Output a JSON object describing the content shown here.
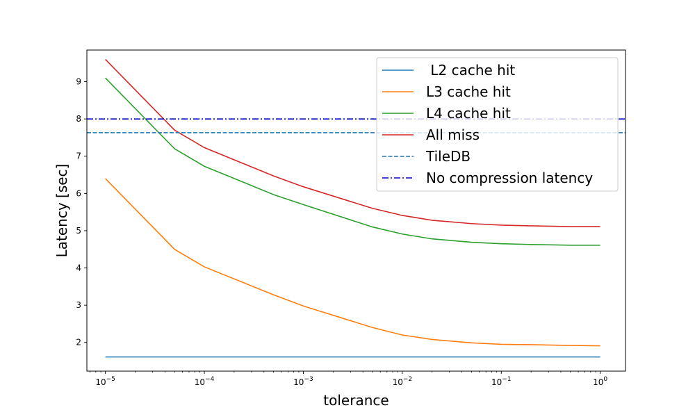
{
  "chart_data": {
    "type": "line",
    "title": "",
    "xlabel": "tolerance",
    "ylabel": "Latency [sec]",
    "xscale": "log",
    "xlim": [
      6.5e-06,
      1.8
    ],
    "ylim": [
      1.23,
      9.85
    ],
    "grid": false,
    "legend_position": "upper right",
    "x_ticks": [
      {
        "value": 1e-05,
        "base": "10",
        "exp": "−5"
      },
      {
        "value": 0.0001,
        "base": "10",
        "exp": "−4"
      },
      {
        "value": 0.001,
        "base": "10",
        "exp": "−3"
      },
      {
        "value": 0.01,
        "base": "10",
        "exp": "−2"
      },
      {
        "value": 0.1,
        "base": "10",
        "exp": "−1"
      },
      {
        "value": 1,
        "base": "10",
        "exp": "0"
      }
    ],
    "y_ticks": [
      2,
      3,
      4,
      5,
      6,
      7,
      8,
      9
    ],
    "series": [
      {
        "name": " L2 cache hit",
        "color": "#1f77b4",
        "style": "solid",
        "x": [
          1e-05,
          5e-05,
          0.0001,
          0.0005,
          0.001,
          0.005,
          0.01,
          0.02,
          0.05,
          0.1,
          0.2,
          0.5,
          1
        ],
        "values": [
          1.61,
          1.61,
          1.61,
          1.61,
          1.61,
          1.61,
          1.61,
          1.61,
          1.61,
          1.61,
          1.61,
          1.61,
          1.61
        ]
      },
      {
        "name": "L3 cache hit",
        "color": "#ff7f0e",
        "style": "solid",
        "x": [
          1e-05,
          5e-05,
          0.0001,
          0.0005,
          0.001,
          0.005,
          0.01,
          0.02,
          0.05,
          0.1,
          0.2,
          0.5,
          1
        ],
        "values": [
          6.4,
          4.5,
          4.03,
          3.28,
          2.98,
          2.4,
          2.2,
          2.08,
          1.99,
          1.95,
          1.94,
          1.92,
          1.91
        ]
      },
      {
        "name": "L4 cache hit",
        "color": "#2ca02c",
        "style": "solid",
        "x": [
          1e-05,
          5e-05,
          0.0001,
          0.0005,
          0.001,
          0.005,
          0.01,
          0.02,
          0.05,
          0.1,
          0.2,
          0.5,
          1
        ],
        "values": [
          9.1,
          7.2,
          6.73,
          5.97,
          5.7,
          5.1,
          4.91,
          4.78,
          4.69,
          4.65,
          4.63,
          4.61,
          4.61
        ]
      },
      {
        "name": "All miss",
        "color": "#d62728",
        "style": "solid",
        "x": [
          1e-05,
          5e-05,
          0.0001,
          0.0005,
          0.001,
          0.005,
          0.01,
          0.02,
          0.05,
          0.1,
          0.2,
          0.5,
          1
        ],
        "values": [
          9.6,
          7.7,
          7.23,
          6.47,
          6.18,
          5.6,
          5.41,
          5.28,
          5.19,
          5.15,
          5.13,
          5.11,
          5.11
        ]
      },
      {
        "name": "TileDB",
        "color": "#1f77b4",
        "style": "dashed",
        "horizontal": 7.63
      },
      {
        "name": "No compression latency",
        "color": "#0000cc",
        "style": "dashdot",
        "horizontal": 8.0
      }
    ]
  }
}
